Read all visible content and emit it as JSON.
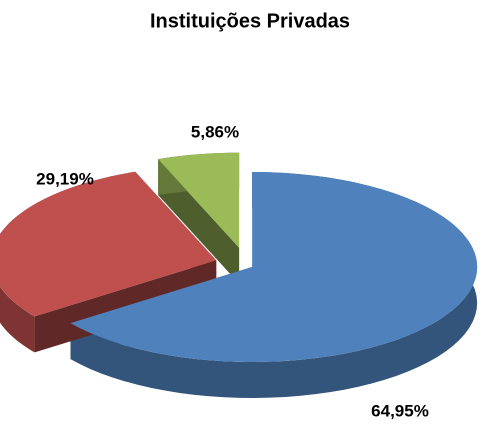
{
  "chart_data": {
    "type": "pie",
    "title": "Instituições Privadas",
    "categories": [
      null,
      null,
      null
    ],
    "values": [
      64.95,
      29.19,
      5.86
    ],
    "value_labels": [
      "64,95%",
      "29,19%",
      "5,86%"
    ],
    "colors": [
      "#4f81bd",
      "#c0504d",
      "#9bbb59"
    ]
  }
}
